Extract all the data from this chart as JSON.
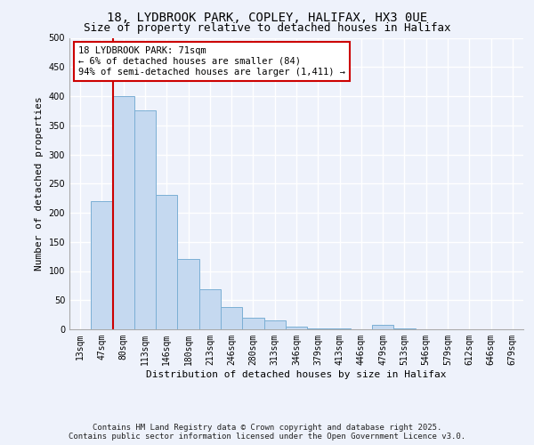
{
  "title": "18, LYDBROOK PARK, COPLEY, HALIFAX, HX3 0UE",
  "subtitle": "Size of property relative to detached houses in Halifax",
  "xlabel": "Distribution of detached houses by size in Halifax",
  "ylabel": "Number of detached properties",
  "bar_color": "#c5d9f0",
  "bar_edge_color": "#7bafd4",
  "bin_labels": [
    "13sqm",
    "47sqm",
    "80sqm",
    "113sqm",
    "146sqm",
    "180sqm",
    "213sqm",
    "246sqm",
    "280sqm",
    "313sqm",
    "346sqm",
    "379sqm",
    "413sqm",
    "446sqm",
    "479sqm",
    "513sqm",
    "546sqm",
    "579sqm",
    "612sqm",
    "646sqm",
    "679sqm"
  ],
  "bar_values": [
    0,
    220,
    400,
    375,
    230,
    120,
    68,
    38,
    20,
    15,
    5,
    2,
    1,
    0,
    7,
    1,
    0,
    0,
    0,
    0,
    0
  ],
  "ylim": [
    0,
    500
  ],
  "yticks": [
    0,
    50,
    100,
    150,
    200,
    250,
    300,
    350,
    400,
    450,
    500
  ],
  "vline_position": 1.5,
  "vline_color": "#cc0000",
  "annotation_text": "18 LYDBROOK PARK: 71sqm\n← 6% of detached houses are smaller (84)\n94% of semi-detached houses are larger (1,411) →",
  "annotation_box_color": "#ffffff",
  "annotation_box_edge": "#cc0000",
  "footer_line1": "Contains HM Land Registry data © Crown copyright and database right 2025.",
  "footer_line2": "Contains public sector information licensed under the Open Government Licence v3.0.",
  "background_color": "#eef2fb",
  "grid_color": "#ffffff",
  "title_fontsize": 10,
  "subtitle_fontsize": 9,
  "axis_label_fontsize": 8,
  "tick_fontsize": 7,
  "annotation_fontsize": 7.5,
  "footer_fontsize": 6.5
}
